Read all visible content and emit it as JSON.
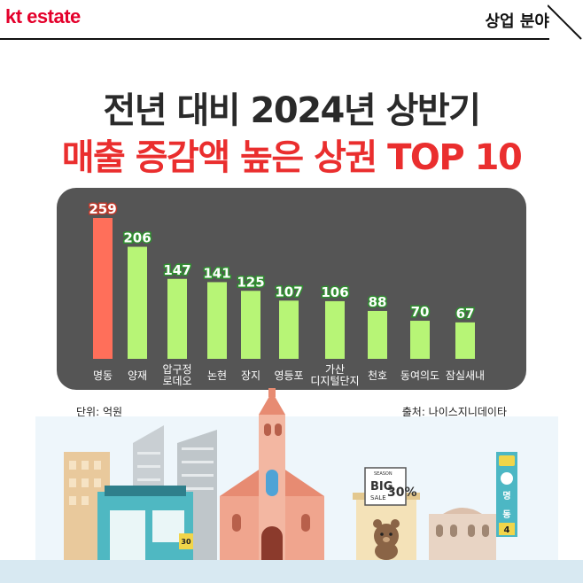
{
  "header": {
    "brand": "kt estate",
    "section": "상업 분야"
  },
  "title": {
    "line1": "전년 대비 2024년 상반기",
    "line2": "매출 증감액 높은 상권 TOP 10"
  },
  "chart_data": {
    "type": "bar",
    "categories": [
      "명동",
      "양재",
      "압구정\n로데오",
      "논현",
      "장지",
      "영등포",
      "가산\n디지털단지",
      "천호",
      "동여의도",
      "잠실새내"
    ],
    "values": [
      259,
      206,
      147,
      141,
      125,
      107,
      106,
      88,
      70,
      67
    ],
    "ylim": [
      0,
      259
    ],
    "highlight_index": 0,
    "colors": {
      "highlight": "#ff6f5a",
      "bar": "#b7f576",
      "label_outline": "#2f8f2f",
      "highlight_outline": "#c0392b",
      "panel": "#555555"
    },
    "unit_label": "단위: 억원",
    "source_label": "출처: 나이스지니데이타"
  },
  "scene": {
    "sale_sign_line1": "SEASON",
    "sale_sign_big": "BIG",
    "sale_sign_sale": "SALE",
    "sale_sign_pct": "30%",
    "small_sign": "30",
    "station_label": "명동",
    "station_line": "4"
  }
}
